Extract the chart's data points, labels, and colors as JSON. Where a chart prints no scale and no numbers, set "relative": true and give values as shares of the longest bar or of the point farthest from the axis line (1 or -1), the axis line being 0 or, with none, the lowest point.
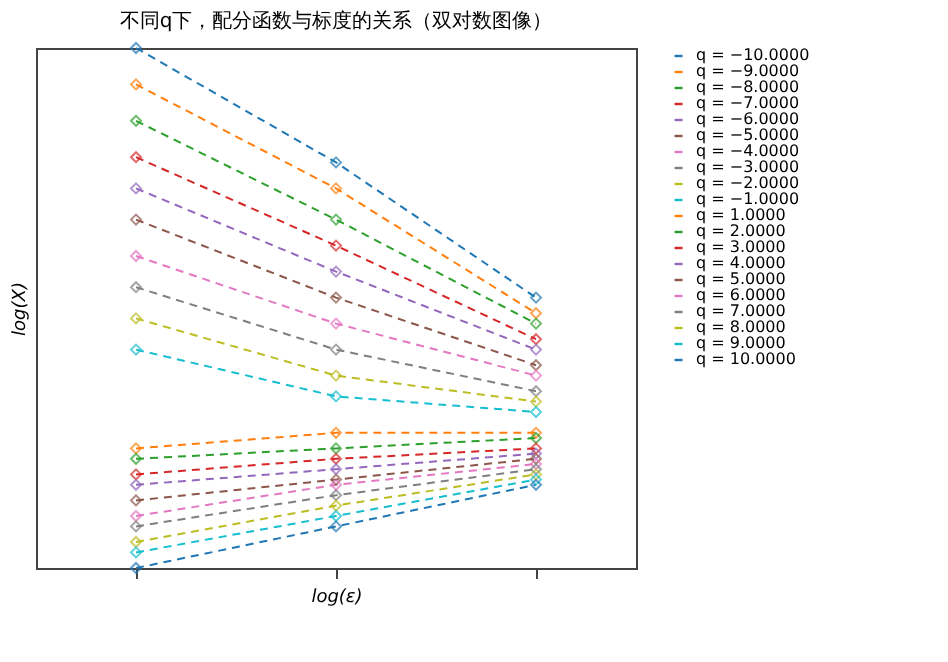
{
  "chart_data": {
    "type": "line",
    "title": "不同q下，配分函数与标度的关系（双对数图像）",
    "xlabel": "log(ε)",
    "ylabel": "log(X)",
    "categories": [
      null,
      null,
      null
    ],
    "relative": true,
    "marker": "diamond",
    "line_style": "dashed",
    "grid": false,
    "legend": "right",
    "series": [
      {
        "name": "q = −10.0000",
        "color": "#1f77b4",
        "values": [
          1.0,
          0.78,
          0.52
        ]
      },
      {
        "name": "q = −9.0000",
        "color": "#ff7f0e",
        "values": [
          0.93,
          0.73,
          0.49
        ]
      },
      {
        "name": "q = −8.0000",
        "color": "#2ca02c",
        "values": [
          0.86,
          0.67,
          0.47
        ]
      },
      {
        "name": "q = −7.0000",
        "color": "#d62728",
        "values": [
          0.79,
          0.62,
          0.44
        ]
      },
      {
        "name": "q = −6.0000",
        "color": "#9467bd",
        "values": [
          0.73,
          0.57,
          0.42
        ]
      },
      {
        "name": "q = −5.0000",
        "color": "#8c564b",
        "values": [
          0.67,
          0.52,
          0.39
        ]
      },
      {
        "name": "q = −4.0000",
        "color": "#e377c2",
        "values": [
          0.6,
          0.47,
          0.37
        ]
      },
      {
        "name": "q = −3.0000",
        "color": "#7f7f7f",
        "values": [
          0.54,
          0.42,
          0.34
        ]
      },
      {
        "name": "q = −2.0000",
        "color": "#bcbd22",
        "values": [
          0.48,
          0.37,
          0.32
        ]
      },
      {
        "name": "q = −1.0000",
        "color": "#17becf",
        "values": [
          0.42,
          0.33,
          0.3
        ]
      },
      {
        "name": "q = 1.0000",
        "color": "#ff7f0e",
        "values": [
          0.23,
          0.26,
          0.26
        ]
      },
      {
        "name": "q = 2.0000",
        "color": "#2ca02c",
        "values": [
          0.21,
          0.23,
          0.25
        ]
      },
      {
        "name": "q = 3.0000",
        "color": "#d62728",
        "values": [
          0.18,
          0.21,
          0.23
        ]
      },
      {
        "name": "q = 4.0000",
        "color": "#9467bd",
        "values": [
          0.16,
          0.19,
          0.22
        ]
      },
      {
        "name": "q = 5.0000",
        "color": "#8c564b",
        "values": [
          0.13,
          0.17,
          0.21
        ]
      },
      {
        "name": "q = 6.0000",
        "color": "#e377c2",
        "values": [
          0.1,
          0.16,
          0.2
        ]
      },
      {
        "name": "q = 7.0000",
        "color": "#7f7f7f",
        "values": [
          0.08,
          0.14,
          0.19
        ]
      },
      {
        "name": "q = 8.0000",
        "color": "#bcbd22",
        "values": [
          0.05,
          0.12,
          0.18
        ]
      },
      {
        "name": "q = 9.0000",
        "color": "#17becf",
        "values": [
          0.03,
          0.1,
          0.17
        ]
      },
      {
        "name": "q = 10.0000",
        "color": "#1f77b4",
        "values": [
          0.0,
          0.08,
          0.16
        ]
      }
    ]
  }
}
